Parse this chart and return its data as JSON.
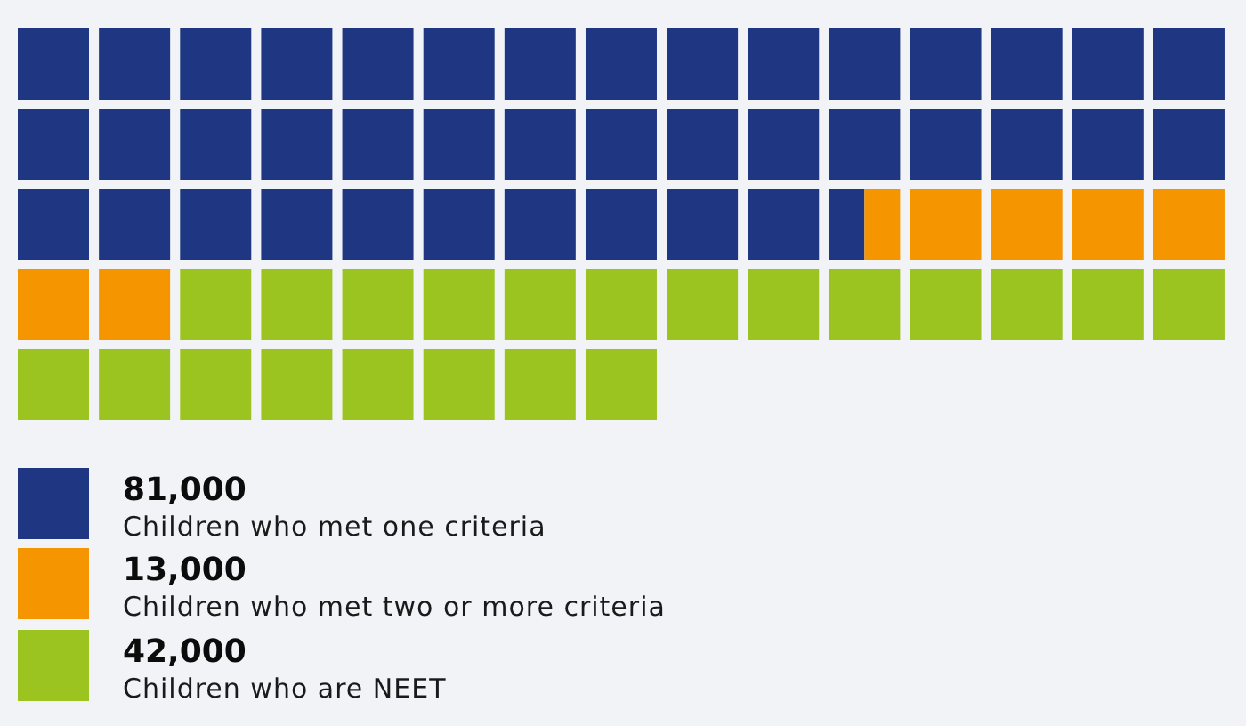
{
  "chart_data": {
    "type": "other",
    "categories": [
      "Children who met one criteria",
      "Children who met two or more criteria",
      "Children who are NEET"
    ],
    "values": [
      81000,
      13000,
      42000
    ],
    "value_labels": [
      "81,000",
      "13,000",
      "42,000"
    ],
    "colors": [
      "#1f3682",
      "#f59600",
      "#9cc420"
    ]
  }
}
